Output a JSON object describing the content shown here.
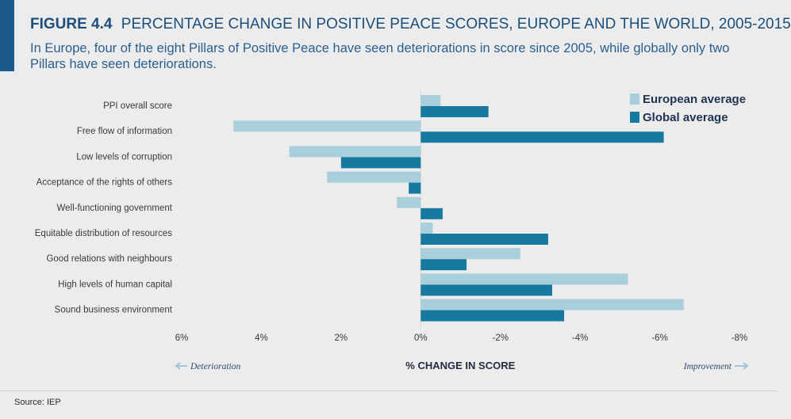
{
  "figure": {
    "number": "FIGURE 4.4",
    "title": "PERCENTAGE CHANGE IN POSITIVE PEACE SCORES, EUROPE AND THE WORLD, 2005-2015",
    "subtitle": "In Europe, four of the eight Pillars of Positive Peace have seen deteriorations in score since 2005, while globally only two Pillars have seen deteriorations.",
    "source": "Source: IEP"
  },
  "colors": {
    "accent": "#1b5a8a",
    "european": "#a9cfdc",
    "global": "#167aa0"
  },
  "chart_data": {
    "type": "bar",
    "orientation": "horizontal",
    "categories": [
      "PPI overall score",
      "Free flow of information",
      "Low levels of corruption",
      "Acceptance of the rights of others",
      "Well-functioning government",
      "Equitable distribution of resources",
      "Good relations with neighbours",
      "High levels of human capital",
      "Sound business environment"
    ],
    "series": [
      {
        "name": "European average",
        "values": [
          -0.5,
          4.7,
          3.3,
          2.35,
          0.6,
          -0.3,
          -2.5,
          -5.2,
          -6.6
        ]
      },
      {
        "name": "Global average",
        "values": [
          -1.7,
          -6.1,
          2.0,
          0.3,
          -0.55,
          -3.2,
          -1.15,
          -3.3,
          -3.6
        ]
      }
    ],
    "xlim": [
      6,
      -8
    ],
    "xticks": [
      6,
      4,
      2,
      0,
      -2,
      -4,
      -6,
      -8
    ],
    "xtick_labels": [
      "6%",
      "4%",
      "2%",
      "0%",
      "-2%",
      "-4%",
      "-6%",
      "-8%"
    ],
    "xlabel": "% CHANGE IN SCORE",
    "left_annotation": "Deterioration",
    "right_annotation": "Improvement",
    "legend_position": "top-right"
  }
}
